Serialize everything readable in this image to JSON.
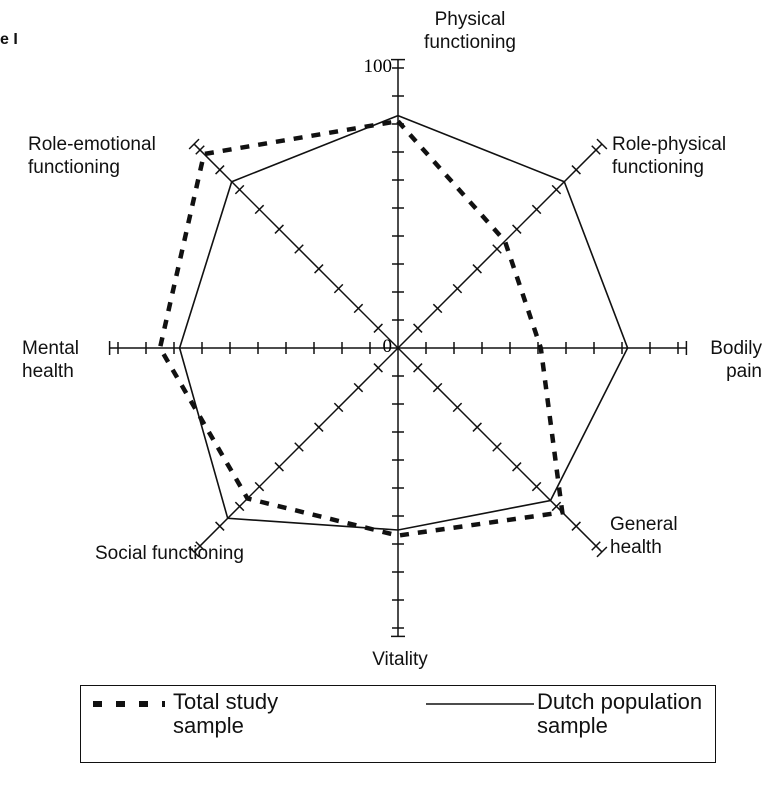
{
  "chart_data": {
    "type": "radar",
    "fig_label": "e I",
    "categories": [
      "Physical functioning",
      "Role-physical functioning",
      "Bodily pain",
      "General health",
      "Vitality",
      "Social functioning",
      "Mental health",
      "Role-emotional functioning"
    ],
    "series": [
      {
        "name": "Total study sample",
        "color": "#111111",
        "dashed": true,
        "values": [
          81,
          54,
          51,
          83,
          67,
          76,
          85,
          98
        ]
      },
      {
        "name": "Dutch population sample",
        "color": "#111111",
        "dashed": false,
        "values": [
          83,
          84,
          82,
          77,
          65,
          86,
          78,
          84
        ]
      }
    ],
    "rlim": [
      0,
      100
    ],
    "rticks": [
      0,
      10,
      20,
      30,
      40,
      50,
      60,
      70,
      80,
      90,
      100
    ],
    "rlabels": [
      0,
      100
    ]
  }
}
